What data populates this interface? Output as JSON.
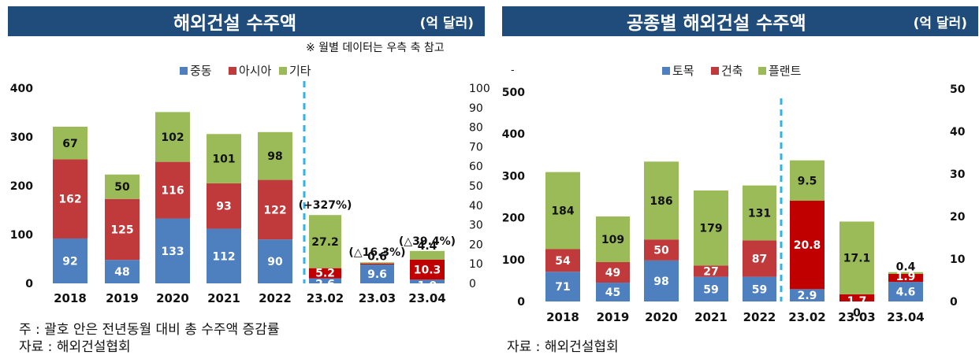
{
  "left": {
    "title": "해외건설 수주액",
    "unit": "(억 달러)",
    "note": "※ 월별 데이터는 우측 축 참고",
    "footnote": "주 : 괄호 안은 전년동월 대비 총 수주액 증감률",
    "source": "자료 : 해외건설협회"
  },
  "right": {
    "title": "공종별 해외건설 수주액",
    "unit": "(억 달러)",
    "dash": "-",
    "source": "자료 : 해외건설협회"
  },
  "colors": {
    "blue": "#4e7fbe",
    "red": "#c0393b",
    "green": "#9bbb59",
    "red2": "#c00000",
    "divider": "#2eb5e6"
  },
  "chart_data": [
    {
      "type": "bar",
      "stacked": true,
      "title": "해외건설 수주액",
      "categories": [
        "2018",
        "2019",
        "2020",
        "2021",
        "2022",
        "23.02",
        "23.03",
        "23.04"
      ],
      "legend": [
        "중동",
        "아시아",
        "기타"
      ],
      "series": [
        {
          "name": "중동",
          "values": [
            92,
            48,
            133,
            112,
            90,
            2.6,
            9.6,
            1.9
          ]
        },
        {
          "name": "아시아",
          "values": [
            162,
            125,
            116,
            93,
            122,
            5.2,
            0.6,
            10.3
          ]
        },
        {
          "name": "기타",
          "values": [
            67,
            50,
            102,
            101,
            98,
            27.2,
            0.6,
            4.4
          ]
        }
      ],
      "value_labels": [
        [
          "92",
          "162",
          "67"
        ],
        [
          "48",
          "125",
          "50"
        ],
        [
          "133",
          "116",
          "102"
        ],
        [
          "112",
          "93",
          "101"
        ],
        [
          "90",
          "122",
          "98"
        ],
        [
          "2.6",
          "5.2",
          "27.2"
        ],
        [
          "9.6",
          "",
          "0.6"
        ],
        [
          "1.9",
          "10.3",
          "4.4"
        ]
      ],
      "growth_labels": [
        "",
        "",
        "",
        "",
        "",
        "(+327%)",
        "(△16.3%)",
        "(△39.4%)"
      ],
      "left_axis": {
        "ticks": [
          "0",
          "100",
          "200",
          "300",
          "400"
        ],
        "range": [
          0,
          400
        ]
      },
      "right_axis": {
        "ticks": [
          "0",
          "10",
          "20",
          "30",
          "40",
          "50",
          "60",
          "70",
          "80",
          "90",
          "100"
        ],
        "range": [
          0,
          100
        ]
      },
      "monthly_from_index": 5
    },
    {
      "type": "bar",
      "stacked": true,
      "title": "공종별 해외건설 수주액",
      "categories": [
        "2018",
        "2019",
        "2020",
        "2021",
        "2022",
        "23.02",
        "23.03",
        "23.04"
      ],
      "legend": [
        "토목",
        "건축",
        "플랜트"
      ],
      "series": [
        {
          "name": "토목",
          "values": [
            71,
            45,
            98,
            59,
            59,
            2.9,
            0,
            4.6
          ]
        },
        {
          "name": "건축",
          "values": [
            54,
            49,
            50,
            27,
            87,
            20.8,
            1.7,
            1.9
          ]
        },
        {
          "name": "플랜트",
          "values": [
            184,
            109,
            186,
            179,
            131,
            9.5,
            17.1,
            0.4
          ]
        }
      ],
      "value_labels": [
        [
          "71",
          "54",
          "184"
        ],
        [
          "45",
          "49",
          "109"
        ],
        [
          "98",
          "50",
          "186"
        ],
        [
          "59",
          "27",
          "179"
        ],
        [
          "59",
          "87",
          "131"
        ],
        [
          "2.9",
          "20.8",
          "9.5"
        ],
        [
          "0",
          "1.7",
          "17.1"
        ],
        [
          "4.6",
          "1.9",
          "0.4"
        ]
      ],
      "left_axis": {
        "ticks": [
          "0",
          "100",
          "200",
          "300",
          "400",
          "500"
        ],
        "range": [
          0,
          500
        ]
      },
      "right_axis": {
        "ticks": [
          "0",
          "10",
          "20",
          "30",
          "40",
          "50"
        ],
        "range": [
          0,
          50
        ]
      },
      "monthly_from_index": 5
    }
  ]
}
